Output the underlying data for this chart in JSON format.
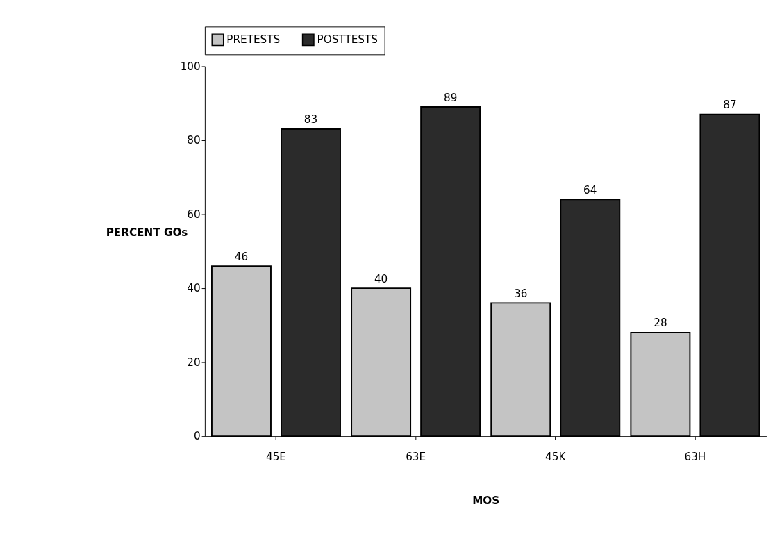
{
  "chart_data": {
    "type": "bar",
    "xlabel": "MOS",
    "ylabel": "PERCENT GOs",
    "categories": [
      "45E",
      "63E",
      "45K",
      "63H"
    ],
    "series": [
      {
        "name": "PRETESTS",
        "color": "#c4c4c4",
        "values": [
          46,
          40,
          36,
          28
        ]
      },
      {
        "name": "POSTTESTS",
        "color": "#2b2b2b",
        "values": [
          83,
          89,
          64,
          87
        ]
      }
    ],
    "ylim": [
      0,
      100
    ],
    "yticks": [
      0,
      20,
      40,
      60,
      80,
      100
    ],
    "grid": false,
    "legend": "top",
    "data_labels": true
  }
}
